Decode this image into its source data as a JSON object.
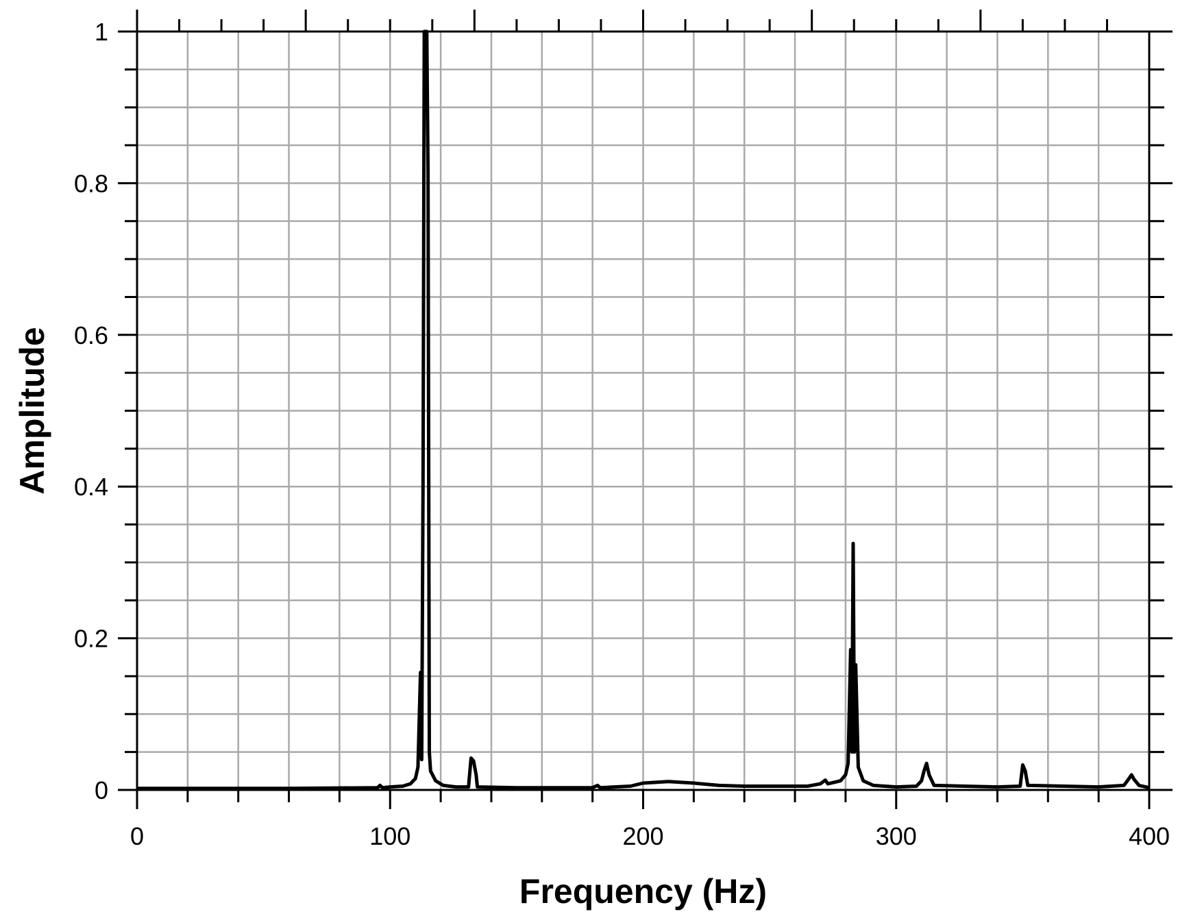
{
  "chart_data": {
    "type": "line",
    "title": "",
    "xlabel": "Frequency (Hz)",
    "ylabel": "Amplitude",
    "xlim": [
      0,
      400
    ],
    "ylim": [
      0,
      1
    ],
    "x_ticks": [
      0,
      100,
      200,
      300,
      400
    ],
    "x_tick_labels": [
      "0",
      "100",
      "200",
      "300",
      "400"
    ],
    "y_ticks": [
      0,
      0.2,
      0.4,
      0.6,
      0.8,
      1
    ],
    "y_tick_labels": [
      "0",
      "0.2",
      "0.4",
      "0.6",
      "0.8",
      "1"
    ],
    "grid": true,
    "series": [
      {
        "color": "#000000",
        "points": [
          [
            0,
            0.002
          ],
          [
            60,
            0.002
          ],
          [
            95,
            0.003
          ],
          [
            96,
            0.006
          ],
          [
            97,
            0.003
          ],
          [
            100,
            0.004
          ],
          [
            105,
            0.005
          ],
          [
            108,
            0.008
          ],
          [
            110,
            0.015
          ],
          [
            111,
            0.03
          ],
          [
            112,
            0.155
          ],
          [
            112.5,
            0.04
          ],
          [
            113,
            0.4
          ],
          [
            113.5,
            1.0
          ],
          [
            114.5,
            1.0
          ],
          [
            115,
            0.815
          ],
          [
            115.5,
            0.05
          ],
          [
            116,
            0.025
          ],
          [
            118,
            0.012
          ],
          [
            121,
            0.006
          ],
          [
            126,
            0.004
          ],
          [
            131,
            0.004
          ],
          [
            132,
            0.042
          ],
          [
            133,
            0.038
          ],
          [
            134,
            0.02
          ],
          [
            134.5,
            0.004
          ],
          [
            150,
            0.003
          ],
          [
            180,
            0.003
          ],
          [
            182,
            0.006
          ],
          [
            183,
            0.003
          ],
          [
            195,
            0.005
          ],
          [
            200,
            0.009
          ],
          [
            210,
            0.011
          ],
          [
            220,
            0.009
          ],
          [
            230,
            0.006
          ],
          [
            240,
            0.005
          ],
          [
            265,
            0.005
          ],
          [
            270,
            0.008
          ],
          [
            272,
            0.013
          ],
          [
            273,
            0.008
          ],
          [
            278,
            0.012
          ],
          [
            280,
            0.02
          ],
          [
            281,
            0.035
          ],
          [
            282,
            0.185
          ],
          [
            282.5,
            0.05
          ],
          [
            283,
            0.325
          ],
          [
            283.5,
            0.05
          ],
          [
            284,
            0.165
          ],
          [
            285,
            0.03
          ],
          [
            287,
            0.012
          ],
          [
            291,
            0.006
          ],
          [
            300,
            0.004
          ],
          [
            308,
            0.005
          ],
          [
            310,
            0.012
          ],
          [
            311,
            0.025
          ],
          [
            312,
            0.035
          ],
          [
            313,
            0.02
          ],
          [
            315,
            0.006
          ],
          [
            340,
            0.004
          ],
          [
            349,
            0.005
          ],
          [
            350,
            0.033
          ],
          [
            351,
            0.025
          ],
          [
            352,
            0.006
          ],
          [
            380,
            0.004
          ],
          [
            390,
            0.006
          ],
          [
            392,
            0.015
          ],
          [
            393,
            0.02
          ],
          [
            394,
            0.014
          ],
          [
            396,
            0.006
          ],
          [
            400,
            0.003
          ]
        ]
      }
    ]
  }
}
